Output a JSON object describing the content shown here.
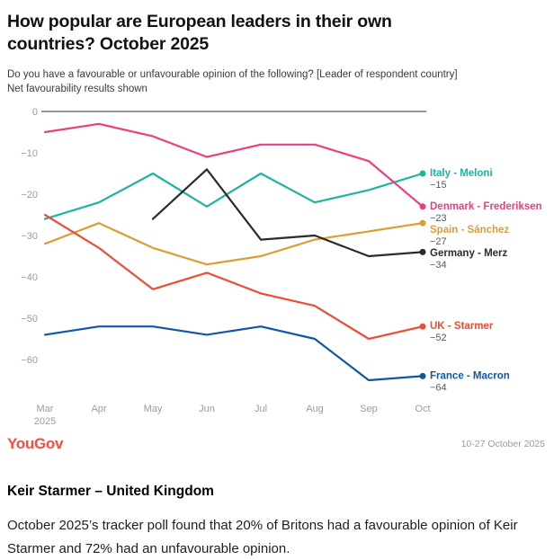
{
  "chart_data": {
    "type": "line",
    "title": "How popular are European leaders in their own countries? October 2025",
    "subtitle_line1": "Do you have a favourable or unfavourable opinion of the following? [Leader of respondent country]",
    "subtitle_line2": "Net favourability results shown",
    "x_labels": [
      "Mar",
      "Apr",
      "May",
      "Jun",
      "Jul",
      "Aug",
      "Sep",
      "Oct"
    ],
    "x_year": "2025",
    "ylim": [
      -70,
      0
    ],
    "yticks": [
      0,
      -10,
      -20,
      -30,
      -40,
      -50,
      -60
    ],
    "grid": false,
    "legend_position": "right-end-labels",
    "series": [
      {
        "id": "italy-meloni",
        "name": "Italy - Meloni",
        "color": "#1fb3a0",
        "values": [
          -26,
          -22,
          -15,
          -23,
          -15,
          -22,
          -19,
          -15
        ],
        "end_label": "−15"
      },
      {
        "id": "denmark-frederiksen",
        "name": "Denmark - Frederiksen",
        "color": "#ee3d7f",
        "values": [
          -5,
          -3,
          -6,
          -11,
          -8,
          -8,
          -12,
          -23
        ],
        "end_label": "−23"
      },
      {
        "id": "spain-sanchez",
        "name": "Spain - Sánchez",
        "color": "#dd9c34",
        "values": [
          -32,
          -27,
          -33,
          -37,
          -35,
          -31,
          -29,
          -27
        ],
        "end_label": "−27"
      },
      {
        "id": "germany-merz",
        "name": "Germany - Merz",
        "color": "#2b2b2b",
        "values": [
          null,
          null,
          -26,
          -14,
          -31,
          -30,
          -35,
          -34
        ],
        "end_label": "−34"
      },
      {
        "id": "uk-starmer",
        "name": "UK - Starmer",
        "color": "#ee4c34",
        "values": [
          -25,
          -33,
          -43,
          -39,
          -44,
          -47,
          -55,
          -52
        ],
        "end_label": "−52"
      },
      {
        "id": "france-macron",
        "name": "France - Macron",
        "color": "#1057a8",
        "values": [
          -54,
          -52,
          -52,
          -54,
          -52,
          -55,
          -65,
          -64
        ],
        "end_label": "−64"
      }
    ]
  },
  "footer": {
    "brand": "YouGov",
    "brand_color": "#fb4b3e",
    "date_range": "10-27 October 2025"
  },
  "article": {
    "heading": "Keir Starmer – United Kingdom",
    "paragraph": "October 2025’s tracker poll found that 20% of Britons had a favourable opinion of Keir Starmer and 72% had an unfavourable opinion."
  }
}
